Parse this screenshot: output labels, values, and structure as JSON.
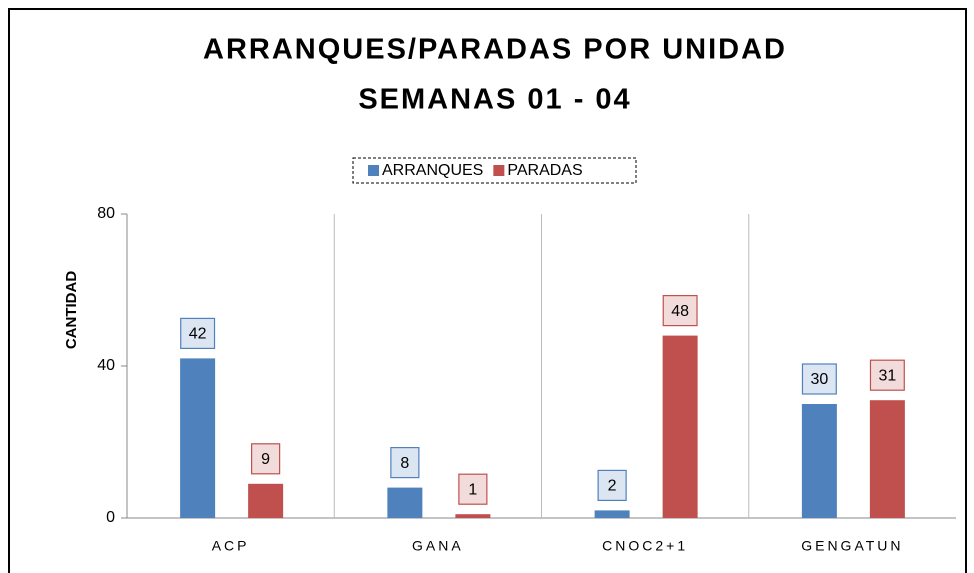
{
  "chart_data": {
    "type": "bar",
    "title": [
      "ARRANQUES/PARADAS POR UNIDAD",
      "SEMANAS 01 - 04"
    ],
    "y_label": "CANTIDAD",
    "categories": [
      "ACP",
      "GANA",
      "CNOC2+1",
      "GENGATUN"
    ],
    "series": [
      {
        "name": "ARRANQUES",
        "color": "#4f81bd",
        "label_fill": "#dce6f2",
        "values": [
          42,
          8,
          2,
          30
        ]
      },
      {
        "name": "PARADAS",
        "color": "#c0504d",
        "label_fill": "#f2dcdb",
        "values": [
          9,
          1,
          48,
          31
        ]
      }
    ],
    "ylim": [
      0,
      80
    ],
    "yticks": [
      0,
      40,
      80
    ],
    "legend": "top"
  }
}
